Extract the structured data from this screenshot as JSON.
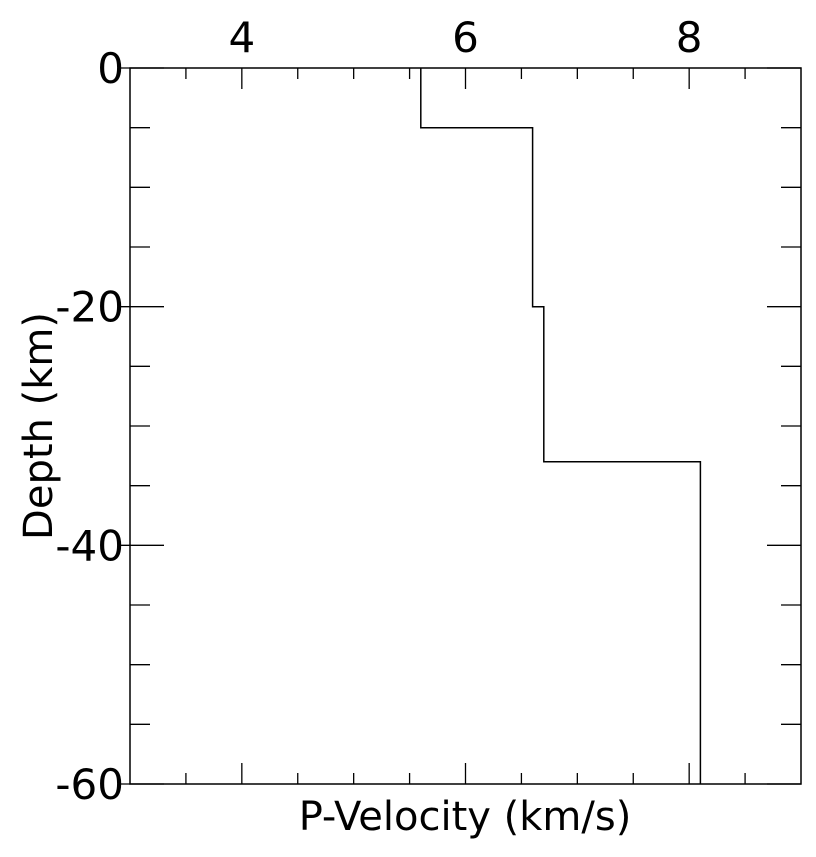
{
  "chart_data": {
    "type": "line",
    "title": "",
    "xlabel": "P-Velocity (km/s)",
    "ylabel": "Depth (km)",
    "xlim": [
      3.0,
      9.0
    ],
    "ylim": [
      -60,
      0
    ],
    "x_ticks": [
      4,
      6,
      8
    ],
    "x_tick_labels": [
      "4",
      "6",
      "8"
    ],
    "y_ticks": [
      0,
      -20,
      -40,
      -60
    ],
    "y_tick_labels": [
      "0",
      "-20",
      "-40",
      "-60"
    ],
    "x_tick_position": "top",
    "grid": false,
    "legend": "none",
    "line_color": "#000000",
    "series": [
      {
        "x": [
          5.6,
          5.6,
          6.6,
          6.6,
          6.7,
          6.7,
          8.1,
          8.1
        ],
        "y": [
          0,
          -5,
          -5,
          -20,
          -20,
          -33,
          -33,
          -60
        ]
      }
    ]
  }
}
